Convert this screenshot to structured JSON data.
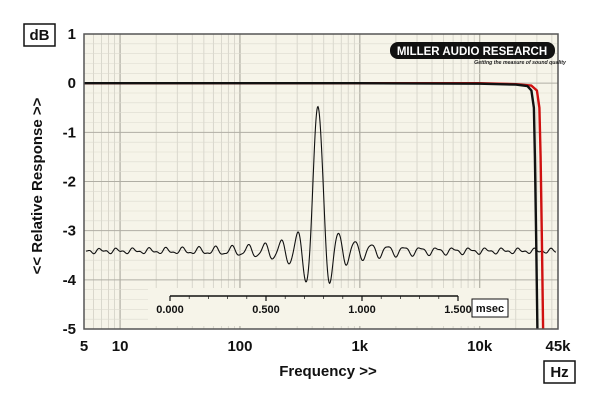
{
  "chart_data": {
    "type": "line",
    "xscale": "log",
    "xlim": [
      5,
      45000
    ],
    "ylim": [
      -5,
      1
    ],
    "x_tick_labels": [
      {
        "v": 5,
        "t": "5"
      },
      {
        "v": 10,
        "t": "10"
      },
      {
        "v": 100,
        "t": "100"
      },
      {
        "v": 1000,
        "t": "1k"
      },
      {
        "v": 10000,
        "t": "10k"
      },
      {
        "v": 45000,
        "t": "45k"
      }
    ],
    "y_ticks": [
      1,
      0,
      -1,
      -2,
      -3,
      -4,
      -5
    ],
    "y_tick_labels": [
      "1",
      "0",
      "-1",
      "-2",
      "-3",
      "-4",
      "-5"
    ],
    "xlabel": "Frequency >>",
    "ylabel": "<< Relative Response >>",
    "xunit": "Hz",
    "yunit": "dB",
    "grid": true,
    "series": [
      {
        "color": "#d01010",
        "x": [
          5,
          100,
          1000,
          10000,
          20000,
          27000,
          30000,
          31500,
          32200,
          33000,
          33800
        ],
        "y": [
          0,
          0,
          0,
          0,
          -0.02,
          -0.05,
          -0.15,
          -0.5,
          -1.5,
          -3.2,
          -5
        ]
      },
      {
        "color": "#111111",
        "x": [
          5,
          100,
          1000,
          10000,
          20000,
          25000,
          27000,
          28300,
          28900,
          29600,
          30300
        ],
        "y": [
          0,
          0,
          0,
          -0.01,
          -0.03,
          -0.06,
          -0.15,
          -0.5,
          -1.5,
          -3.2,
          -5
        ]
      }
    ],
    "inset": {
      "type": "line",
      "description_axis_unit": "msec",
      "xlim": [
        0,
        1.5
      ],
      "x_ticks": [
        0,
        0.5,
        1,
        1.5
      ],
      "x_tick_labels": [
        "0.000",
        "0.500",
        "1.000",
        "1.500"
      ],
      "impulse_peak_time": 0.78
    }
  },
  "logo": {
    "text": "MILLER AUDIO RESEARCH",
    "tagline": "Getting the measure of sound quality"
  },
  "colors": {
    "plot_bg": "#f6f4e9",
    "grid": "#c8c6bc",
    "frame": "#555555",
    "red_trace": "#d01010",
    "black_trace": "#111111"
  }
}
